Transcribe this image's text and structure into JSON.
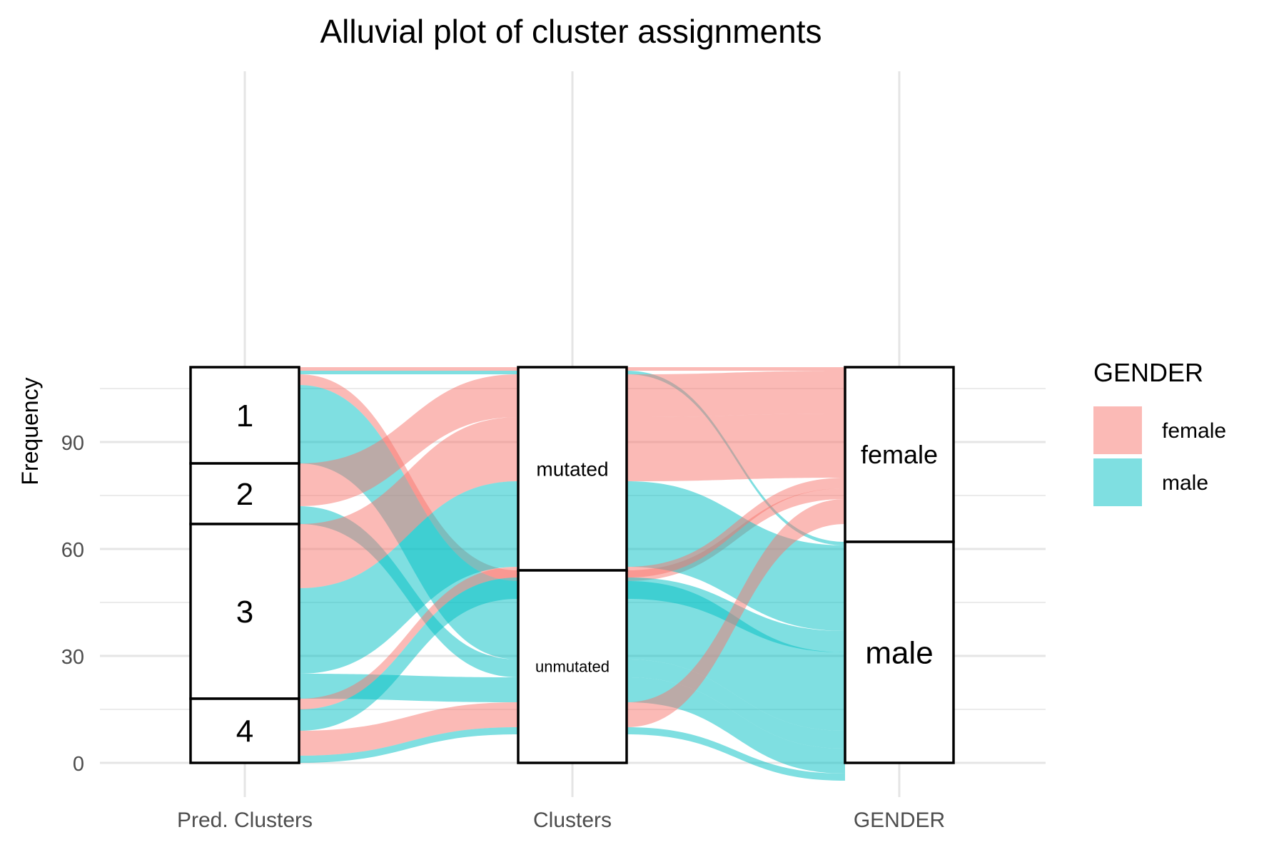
{
  "chart_data": {
    "type": "alluvial",
    "title": "Alluvial plot of cluster assignments",
    "xlabel": "",
    "ylabel": "Frequency",
    "ylim": [
      0,
      111
    ],
    "yticks": [
      0,
      30,
      60,
      90
    ],
    "grid": true,
    "axes": [
      "Pred. Clusters",
      "Clusters",
      "GENDER"
    ],
    "legend": {
      "title": "GENDER",
      "position": "right",
      "entries": [
        {
          "label": "female",
          "color": "#F8766D"
        },
        {
          "label": "male",
          "color": "#00BFC4"
        }
      ]
    },
    "strata": [
      {
        "axis": "Pred. Clusters",
        "label": "1",
        "value": 27
      },
      {
        "axis": "Pred. Clusters",
        "label": "2",
        "value": 17
      },
      {
        "axis": "Pred. Clusters",
        "label": "3",
        "value": 49
      },
      {
        "axis": "Pred. Clusters",
        "label": "4",
        "value": 18
      },
      {
        "axis": "Clusters",
        "label": "mutated",
        "value": 57
      },
      {
        "axis": "Clusters",
        "label": "unmutated",
        "value": 54
      },
      {
        "axis": "GENDER",
        "label": "female",
        "value": 49
      },
      {
        "axis": "GENDER",
        "label": "male",
        "value": 62
      }
    ],
    "flows": [
      {
        "pred": "1",
        "cluster": "mutated",
        "gender": "female",
        "value": 1
      },
      {
        "pred": "1",
        "cluster": "mutated",
        "gender": "male",
        "value": 1
      },
      {
        "pred": "1",
        "cluster": "unmutated",
        "gender": "female",
        "value": 3
      },
      {
        "pred": "1",
        "cluster": "unmutated",
        "gender": "male",
        "value": 22
      },
      {
        "pred": "2",
        "cluster": "mutated",
        "gender": "female",
        "value": 12
      },
      {
        "pred": "2",
        "cluster": "unmutated",
        "gender": "male",
        "value": 5
      },
      {
        "pred": "3",
        "cluster": "mutated",
        "gender": "female",
        "value": 18
      },
      {
        "pred": "3",
        "cluster": "mutated",
        "gender": "male",
        "value": 24
      },
      {
        "pred": "3",
        "cluster": "unmutated",
        "gender": "male",
        "value": 7
      },
      {
        "pred": "4",
        "cluster": "mutated",
        "gender": "female",
        "value": 3
      },
      {
        "pred": "4",
        "cluster": "mutated",
        "gender": "male",
        "value": 6
      },
      {
        "pred": "4",
        "cluster": "unmutated",
        "gender": "female",
        "value": 7
      },
      {
        "pred": "4",
        "cluster": "unmutated",
        "gender": "male",
        "value": 2
      }
    ]
  }
}
